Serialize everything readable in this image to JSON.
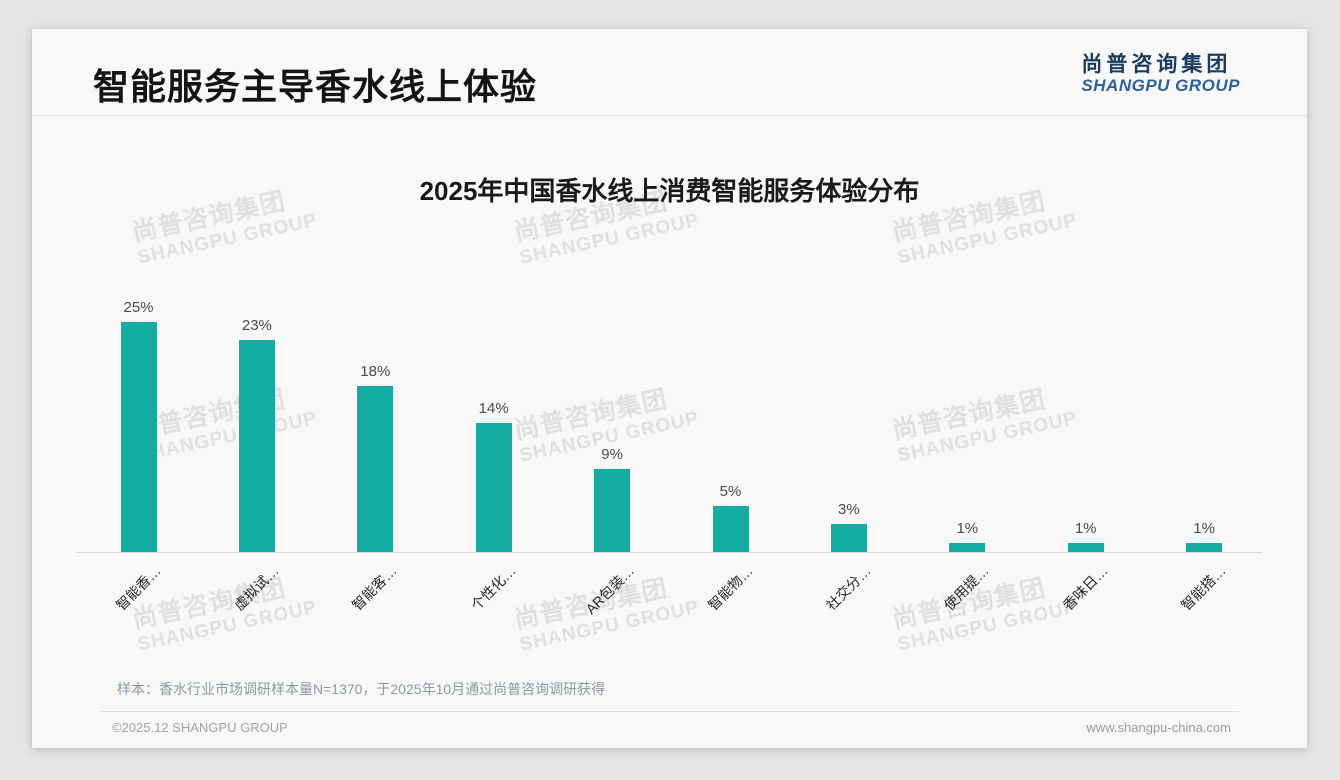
{
  "header": {
    "title": "智能服务主导香水线上体验"
  },
  "logo": {
    "cn": "尚普咨询集团",
    "en": "SHANGPU GROUP"
  },
  "watermark": {
    "line1": "尚普咨询集团",
    "line2": "SHANGPU GROUP"
  },
  "chart_data": {
    "type": "bar",
    "title": "2025年中国香水线上消费智能服务体验分布",
    "categories": [
      "智能香…",
      "虚拟试…",
      "智能客…",
      "个性化…",
      "AR包装…",
      "智能物…",
      "社交分…",
      "使用提…",
      "香味日…",
      "智能搭…"
    ],
    "values": [
      25,
      23,
      18,
      14,
      9,
      5,
      3,
      1,
      1,
      1
    ],
    "value_labels": [
      "25%",
      "23%",
      "18%",
      "14%",
      "9%",
      "5%",
      "3%",
      "1%",
      "1%",
      "1%"
    ],
    "unit": "%",
    "ylim": [
      0,
      25
    ],
    "bar_color": "#12aca4",
    "grid": false,
    "legend": false,
    "x_label_rotation": -45
  },
  "note": {
    "text": "样本：香水行业市场调研样本量N=1370，于2025年10月通过尚普咨询调研获得"
  },
  "footer": {
    "left": "©2025.12 SHANGPU GROUP",
    "right": "www.shangpu-china.com"
  },
  "colors": {
    "bar": "#12aca4",
    "logo_cn": "#1c3c5e",
    "logo_en": "#2e5e9e",
    "note_text": "#8a98a8",
    "watermark": "#e0e0e0"
  }
}
